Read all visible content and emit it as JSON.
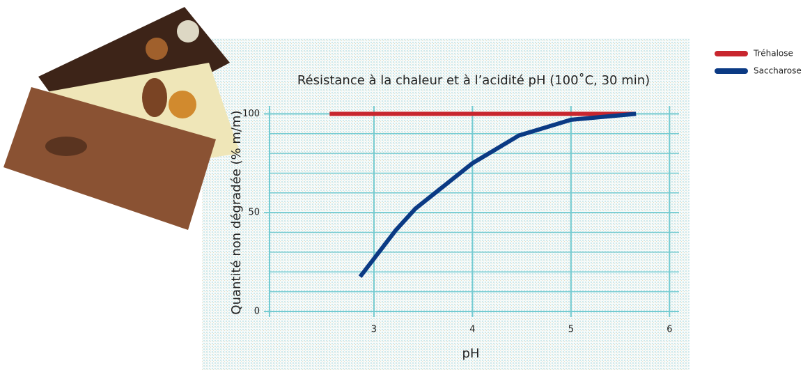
{
  "chart_data": {
    "type": "line",
    "title": "Résistance à la chaleur et à l’acidité pH (100˚C, 30 min)",
    "x_label": "pH",
    "y_label": "Quantité non dégradée (% m/m)",
    "series": [
      {
        "name": "Tréhalose",
        "color": "#c8262e",
        "x": [
          2.55,
          5.65
        ],
        "values": [
          100,
          100
        ]
      },
      {
        "name": "Saccharose",
        "color": "#0b3a84",
        "x": [
          2.86,
          3.22,
          3.42,
          4.0,
          4.47,
          5.0,
          5.66
        ],
        "values": [
          17.6,
          41,
          52,
          75,
          89,
          97,
          100
        ]
      }
    ],
    "xlim": [
      1.94,
      6.04
    ],
    "xticks": [
      3,
      4,
      5,
      6
    ],
    "ylim": [
      0,
      104
    ],
    "yticks": [
      0,
      50,
      100
    ],
    "ygrid": [
      10,
      20,
      30,
      40,
      60,
      70,
      80,
      90
    ],
    "grid": true,
    "legend": "top-right"
  }
}
